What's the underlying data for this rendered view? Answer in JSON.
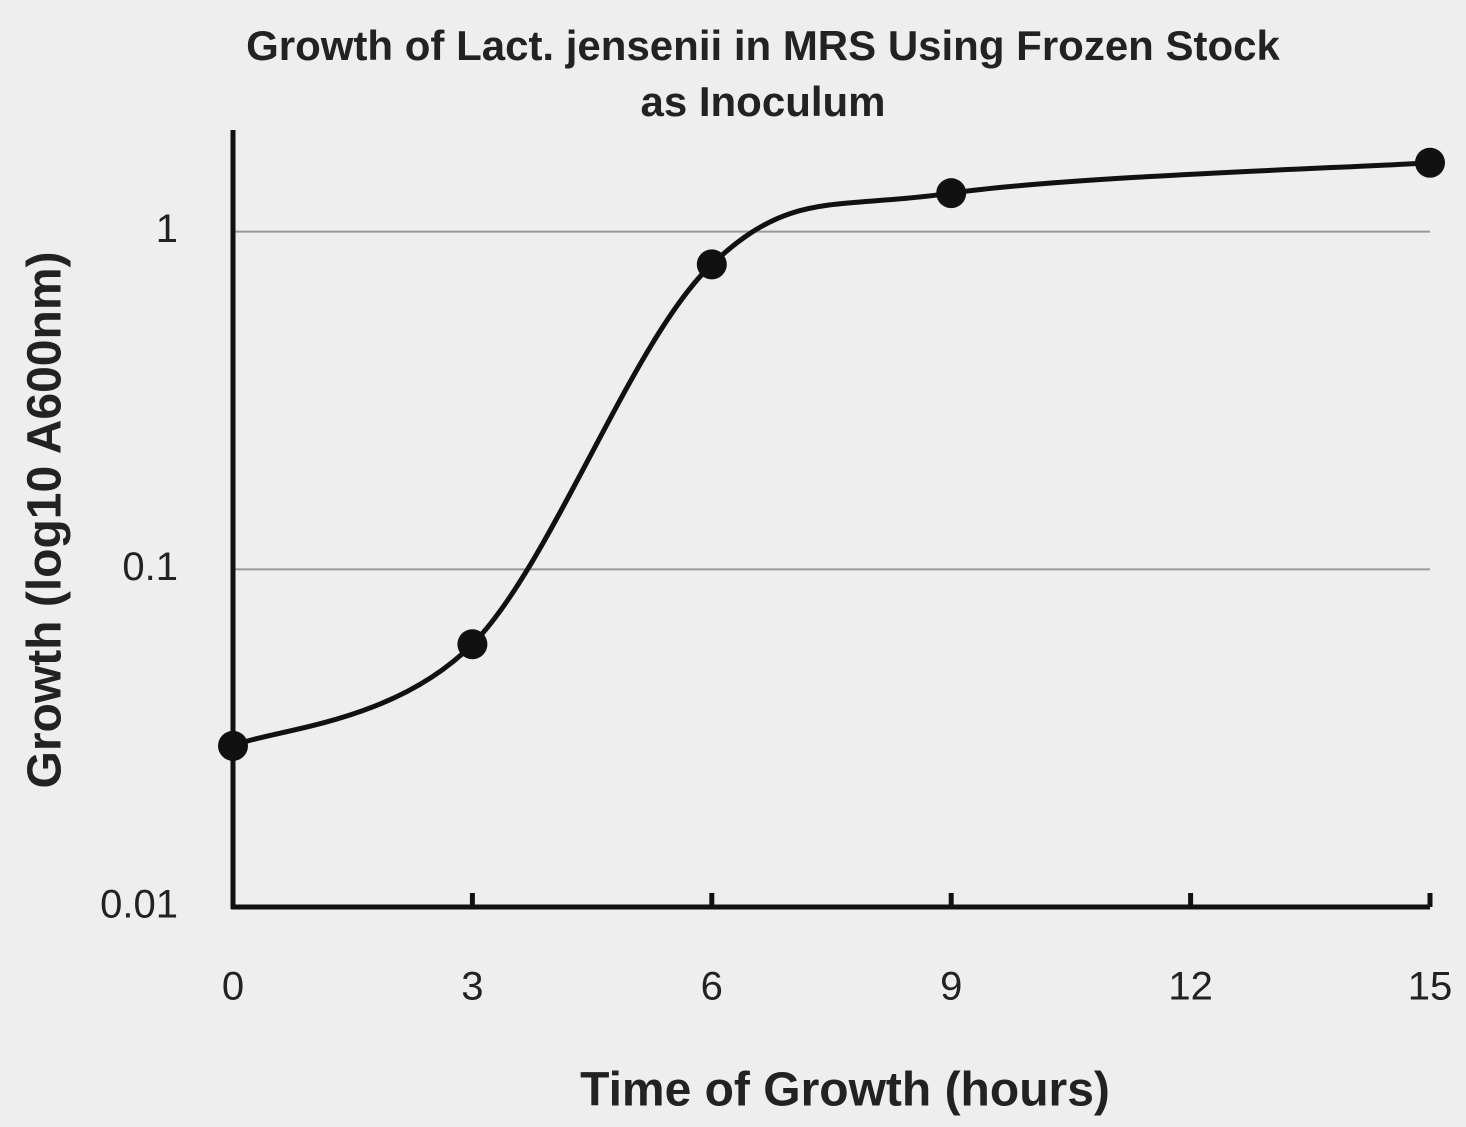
{
  "chart_data": {
    "type": "line",
    "title": "Growth of Lact. jensenii in MRS Using Frozen Stock as Inoculum",
    "x_label": "Time of Growth (hours)",
    "y_label": "Growth (log10 A600nm)",
    "x": [
      0,
      3,
      6,
      9,
      15
    ],
    "series": [
      {
        "name": "Growth",
        "color": "#111111",
        "values": [
          0.03,
          0.06,
          0.8,
          1.3,
          1.6
        ]
      }
    ],
    "xlim": [
      0,
      15
    ],
    "xticks": [
      0,
      3,
      6,
      9,
      12,
      15
    ],
    "ylim": [
      0.01,
      2
    ],
    "yticks": [
      0.01,
      0.1,
      1
    ],
    "y_scale": "log",
    "grid": true,
    "smooth": true
  }
}
